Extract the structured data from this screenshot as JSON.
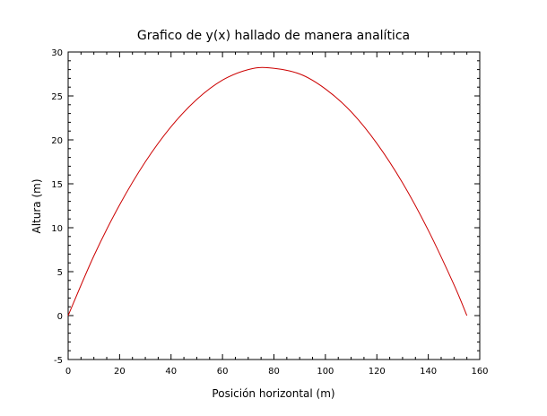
{
  "chart_data": {
    "type": "line",
    "title": "Grafico de y(x) hallado de manera analítica",
    "xlabel": "Posición horizontal (m)",
    "ylabel": "Altura (m)",
    "xlim": [
      0,
      160
    ],
    "ylim": [
      -5,
      30
    ],
    "xticks": [
      "0",
      "20",
      "40",
      "60",
      "80",
      "100",
      "120",
      "140",
      "160"
    ],
    "yticks": [
      "-5",
      "0",
      "5",
      "10",
      "15",
      "20",
      "25",
      "30"
    ],
    "grid": false,
    "legend": "none",
    "line_color": "#cc0000",
    "series": [
      {
        "x": [
          0,
          10,
          20,
          30,
          40,
          50,
          60,
          70,
          78,
          90,
          100,
          110,
          120,
          130,
          140,
          150,
          155
        ],
        "y": [
          0,
          6.8,
          12.6,
          17.5,
          21.5,
          24.6,
          26.8,
          28.0,
          28.2,
          27.5,
          25.8,
          23.2,
          19.6,
          15.1,
          9.7,
          3.5,
          0
        ]
      }
    ]
  }
}
